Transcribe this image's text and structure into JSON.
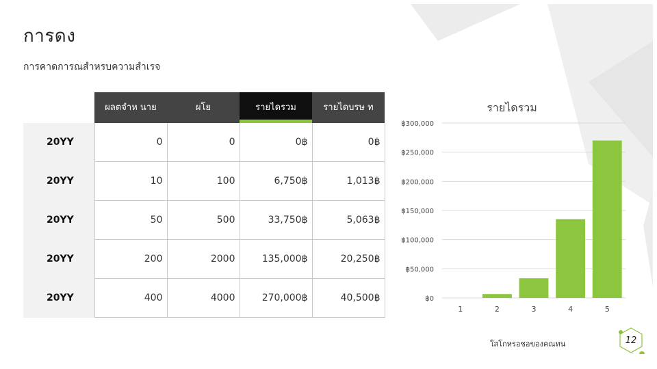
{
  "slide": {
    "title": "การดง",
    "subtitle": "การคาดการณสำหรบความสำเรจ",
    "footer": "ใสโกหรอชอของคณทน",
    "page_number": "12"
  },
  "table": {
    "headers": [
      "ผลตจำห นาย",
      "ผโย",
      "รายไดรวม",
      "รายไดบรษ ท"
    ],
    "rows": [
      {
        "year": "20YY",
        "cells": [
          "0",
          "0",
          "0฿",
          "0฿"
        ]
      },
      {
        "year": "20YY",
        "cells": [
          "10",
          "100",
          "6,750฿",
          "1,013฿"
        ]
      },
      {
        "year": "20YY",
        "cells": [
          "50",
          "500",
          "33,750฿",
          "5,063฿"
        ]
      },
      {
        "year": "20YY",
        "cells": [
          "200",
          "2000",
          "135,000฿",
          "20,250฿"
        ]
      },
      {
        "year": "20YY",
        "cells": [
          "400",
          "4000",
          "270,000฿",
          "40,500฿"
        ]
      }
    ]
  },
  "chart_data": {
    "type": "bar",
    "title": "รายไดรวม",
    "categories": [
      "1",
      "2",
      "3",
      "4",
      "5"
    ],
    "values": [
      0,
      6750,
      33750,
      135000,
      270000
    ],
    "ylim": [
      0,
      300000
    ],
    "yticks": [
      {
        "value": 300000,
        "label": "฿300,000"
      },
      {
        "value": 250000,
        "label": "฿250,000"
      },
      {
        "value": 200000,
        "label": "฿200,000"
      },
      {
        "value": 150000,
        "label": "฿150,000"
      },
      {
        "value": 100000,
        "label": "฿100,000"
      },
      {
        "value": 50000,
        "label": "฿50,000"
      },
      {
        "value": 0,
        "label": "฿0"
      }
    ],
    "grid": true,
    "bar_color": "#8cc63f"
  },
  "colors": {
    "accent": "#8cc63f",
    "header_bg": "#444444",
    "header_accent_bg": "#0f0f0f",
    "decor": "#ececec"
  }
}
